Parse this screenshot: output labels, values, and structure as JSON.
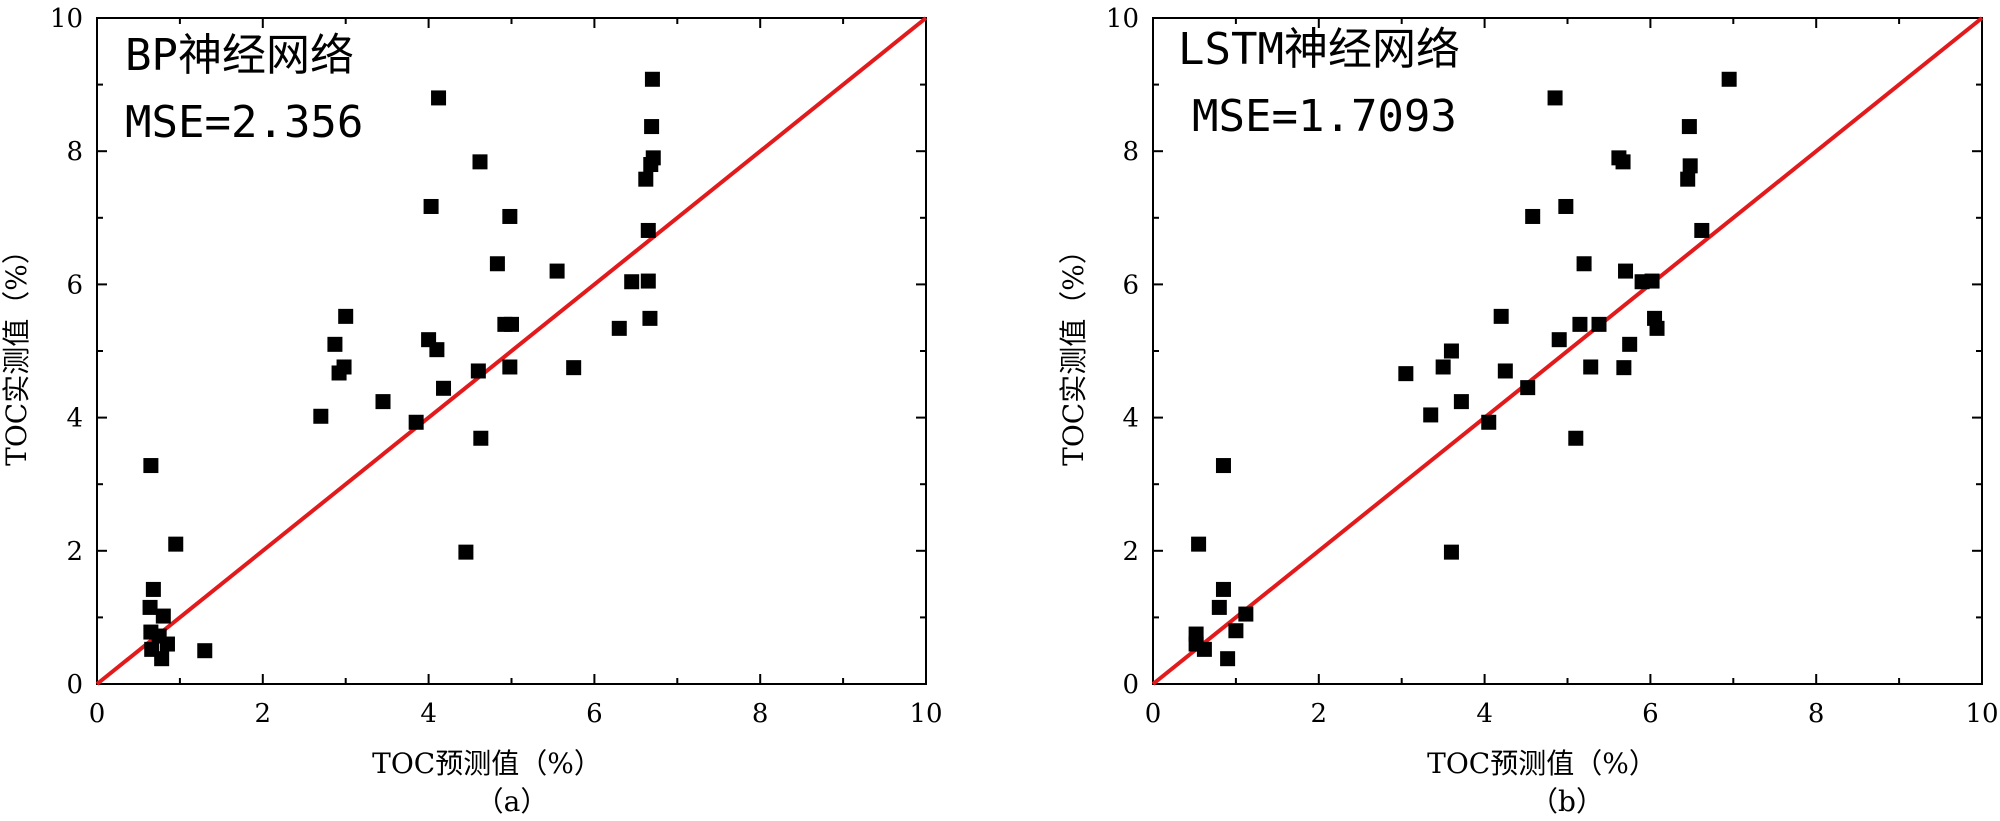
{
  "chart_data": [
    {
      "type": "scatter",
      "panel_label": "（a）",
      "annotation_title": "BP神经网络",
      "annotation_metric": "MSE=2.356",
      "xlabel": "TOC预测值（%）",
      "ylabel": "TOC实测值（%）",
      "xlim": [
        0,
        10
      ],
      "ylim": [
        0,
        10
      ],
      "xticks": [
        "0",
        "2",
        "4",
        "6",
        "8",
        "10"
      ],
      "yticks": [
        "0",
        "2",
        "4",
        "6",
        "8",
        "10"
      ],
      "reference_line": {
        "type": "y=x",
        "color": "#e31a1c"
      },
      "marker": {
        "shape": "square",
        "color": "#000000"
      },
      "grid": false,
      "points": [
        [
          0.65,
          3.28
        ],
        [
          0.68,
          1.42
        ],
        [
          0.64,
          1.15
        ],
        [
          0.8,
          1.02
        ],
        [
          0.65,
          0.78
        ],
        [
          0.75,
          0.72
        ],
        [
          0.66,
          0.52
        ],
        [
          0.85,
          0.6
        ],
        [
          0.78,
          0.38
        ],
        [
          0.95,
          2.1
        ],
        [
          1.3,
          0.5
        ],
        [
          2.7,
          4.02
        ],
        [
          2.87,
          5.1
        ],
        [
          2.92,
          4.67
        ],
        [
          2.98,
          4.76
        ],
        [
          3.0,
          5.52
        ],
        [
          3.45,
          4.24
        ],
        [
          3.85,
          3.93
        ],
        [
          4.0,
          5.17
        ],
        [
          4.03,
          7.17
        ],
        [
          4.1,
          5.02
        ],
        [
          4.12,
          8.8
        ],
        [
          4.18,
          4.44
        ],
        [
          4.45,
          1.98
        ],
        [
          4.6,
          4.7
        ],
        [
          4.63,
          3.69
        ],
        [
          4.62,
          7.84
        ],
        [
          4.83,
          6.31
        ],
        [
          4.92,
          5.4
        ],
        [
          4.98,
          4.76
        ],
        [
          4.98,
          7.02
        ],
        [
          5.0,
          5.4
        ],
        [
          5.55,
          6.2
        ],
        [
          5.75,
          4.75
        ],
        [
          6.3,
          5.34
        ],
        [
          6.45,
          6.04
        ],
        [
          6.62,
          7.58
        ],
        [
          6.65,
          6.81
        ],
        [
          6.65,
          6.05
        ],
        [
          6.67,
          5.49
        ],
        [
          6.68,
          7.8
        ],
        [
          6.69,
          8.37
        ],
        [
          6.7,
          9.08
        ],
        [
          6.71,
          7.9
        ]
      ]
    },
    {
      "type": "scatter",
      "panel_label": "（b）",
      "annotation_title": "LSTM神经网络",
      "annotation_metric": "MSE=1.7093",
      "xlabel": "TOC预测值（%）",
      "ylabel": "TOC实测值（%）",
      "xlim": [
        0,
        10
      ],
      "ylim": [
        0,
        10
      ],
      "xticks": [
        "0",
        "2",
        "4",
        "6",
        "8",
        "10"
      ],
      "yticks": [
        "0",
        "2",
        "4",
        "6",
        "8",
        "10"
      ],
      "reference_line": {
        "type": "y=x",
        "color": "#e31a1c"
      },
      "marker": {
        "shape": "square",
        "color": "#000000"
      },
      "grid": false,
      "points": [
        [
          0.55,
          2.1
        ],
        [
          0.85,
          3.28
        ],
        [
          0.85,
          1.42
        ],
        [
          0.8,
          1.15
        ],
        [
          0.52,
          0.75
        ],
        [
          0.52,
          0.6
        ],
        [
          0.62,
          0.52
        ],
        [
          0.9,
          0.38
        ],
        [
          1.0,
          0.8
        ],
        [
          1.12,
          1.05
        ],
        [
          3.05,
          4.66
        ],
        [
          3.35,
          4.04
        ],
        [
          3.5,
          4.76
        ],
        [
          3.6,
          5.0
        ],
        [
          3.6,
          1.98
        ],
        [
          3.72,
          4.24
        ],
        [
          4.05,
          3.93
        ],
        [
          4.2,
          5.52
        ],
        [
          4.25,
          4.7
        ],
        [
          4.52,
          4.45
        ],
        [
          4.58,
          7.02
        ],
        [
          4.85,
          8.8
        ],
        [
          4.9,
          5.17
        ],
        [
          4.98,
          7.17
        ],
        [
          5.1,
          3.69
        ],
        [
          5.15,
          5.4
        ],
        [
          5.2,
          6.31
        ],
        [
          5.28,
          4.76
        ],
        [
          5.38,
          5.4
        ],
        [
          5.62,
          7.9
        ],
        [
          5.67,
          7.84
        ],
        [
          5.68,
          4.75
        ],
        [
          5.7,
          6.2
        ],
        [
          5.75,
          5.1
        ],
        [
          5.9,
          6.04
        ],
        [
          6.02,
          6.05
        ],
        [
          6.05,
          5.49
        ],
        [
          6.08,
          5.34
        ],
        [
          6.45,
          7.58
        ],
        [
          6.47,
          8.37
        ],
        [
          6.48,
          7.78
        ],
        [
          6.62,
          6.81
        ],
        [
          6.95,
          9.08
        ]
      ]
    }
  ]
}
